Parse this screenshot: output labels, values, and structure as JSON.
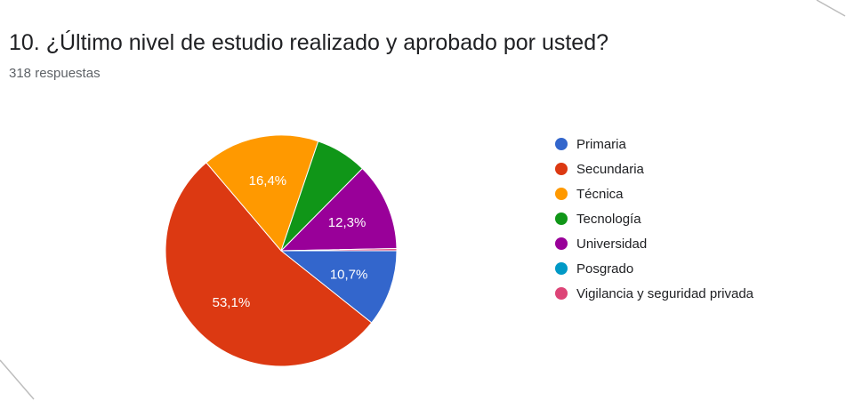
{
  "header": {
    "title": "10. ¿Último nivel de estudio realizado y aprobado por usted?",
    "subtitle": "318 respuestas"
  },
  "chart_data": {
    "type": "pie",
    "categories": [
      "Primaria",
      "Secundaria",
      "Técnica",
      "Tecnología",
      "Universidad",
      "Posgrado",
      "Vigilancia y seguridad privada"
    ],
    "values": [
      10.7,
      53.1,
      16.4,
      7.2,
      12.3,
      0.0,
      0.3
    ],
    "value_labels": [
      "10,7%",
      "53,1%",
      "16,4%",
      "",
      "12,3%",
      "",
      ""
    ],
    "colors": [
      "#3366cc",
      "#dc3912",
      "#ff9900",
      "#109618",
      "#990099",
      "#0099c6",
      "#dd4477"
    ],
    "legend_position": "right"
  }
}
